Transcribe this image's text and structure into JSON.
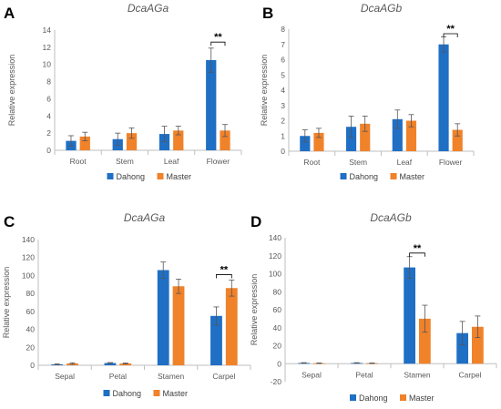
{
  "colors": {
    "series1": "#1f6fc5",
    "series2": "#f0822a",
    "axis": "#bfbfbf",
    "text": "#595959"
  },
  "chart_data": [
    {
      "panel": "A",
      "type": "bar",
      "title": "DcaAGa",
      "ylabel": "Relative expression",
      "ylim": [
        0,
        14
      ],
      "yticks": [
        0,
        2,
        4,
        6,
        8,
        10,
        12,
        14
      ],
      "categories": [
        "Root",
        "Stem",
        "Leaf",
        "Flower"
      ],
      "series": [
        {
          "name": "Dahong",
          "values": [
            1.1,
            1.3,
            1.9,
            10.5
          ],
          "errors": [
            0.6,
            0.7,
            0.9,
            1.4
          ]
        },
        {
          "name": "Master",
          "values": [
            1.6,
            2.0,
            2.3,
            2.3
          ],
          "errors": [
            0.5,
            0.6,
            0.5,
            0.7
          ]
        }
      ],
      "significance": [
        {
          "category_index": 3,
          "label": "**",
          "level": 12.6
        }
      ],
      "legend_position": "bottom"
    },
    {
      "panel": "B",
      "type": "bar",
      "title": "DcaAGb",
      "ylabel": "Relative expression",
      "ylim": [
        0,
        8
      ],
      "yticks": [
        0,
        1,
        2,
        3,
        4,
        5,
        6,
        7,
        8
      ],
      "categories": [
        "Root",
        "Stem",
        "Leaf",
        "Flower"
      ],
      "series": [
        {
          "name": "Dahong",
          "values": [
            1.0,
            1.6,
            2.1,
            7.0
          ],
          "errors": [
            0.4,
            0.7,
            0.6,
            0.5
          ]
        },
        {
          "name": "Master",
          "values": [
            1.2,
            1.8,
            2.0,
            1.4
          ],
          "errors": [
            0.3,
            0.5,
            0.4,
            0.4
          ]
        }
      ],
      "significance": [
        {
          "category_index": 3,
          "label": "**",
          "level": 7.7
        }
      ],
      "legend_position": "bottom"
    },
    {
      "panel": "C",
      "type": "bar",
      "title": "DcaAGa",
      "ylabel": "Relative expression",
      "ylim": [
        0,
        140
      ],
      "yticks": [
        0,
        20,
        40,
        60,
        80,
        100,
        120,
        140
      ],
      "categories": [
        "Sepal",
        "Petal",
        "Stamen",
        "Carpel"
      ],
      "series": [
        {
          "name": "Dahong",
          "values": [
            1,
            2.5,
            106,
            55
          ],
          "errors": [
            0.5,
            0.5,
            9,
            10
          ]
        },
        {
          "name": "Master",
          "values": [
            2,
            2,
            88,
            86
          ],
          "errors": [
            0.8,
            0.5,
            8,
            9
          ]
        }
      ],
      "significance": [
        {
          "category_index": 3,
          "label": "**",
          "level": 101
        }
      ],
      "legend_position": "bottom"
    },
    {
      "panel": "D",
      "type": "bar",
      "title": "DcaAGb",
      "ylabel": "Relative expression",
      "ylim": [
        -20,
        140
      ],
      "yticks": [
        -20,
        0,
        20,
        40,
        60,
        80,
        100,
        120,
        140
      ],
      "categories": [
        "Sepal",
        "Petal",
        "Stamen",
        "Carpel"
      ],
      "series": [
        {
          "name": "Dahong",
          "values": [
            0.8,
            0.8,
            107,
            34
          ],
          "errors": [
            0.3,
            0.3,
            12,
            13
          ]
        },
        {
          "name": "Master",
          "values": [
            0.5,
            0.5,
            50,
            41
          ],
          "errors": [
            0.3,
            0.3,
            15,
            12
          ]
        }
      ],
      "significance": [
        {
          "category_index": 2,
          "label": "**",
          "level": 123
        }
      ],
      "legend_position": "bottom"
    }
  ]
}
